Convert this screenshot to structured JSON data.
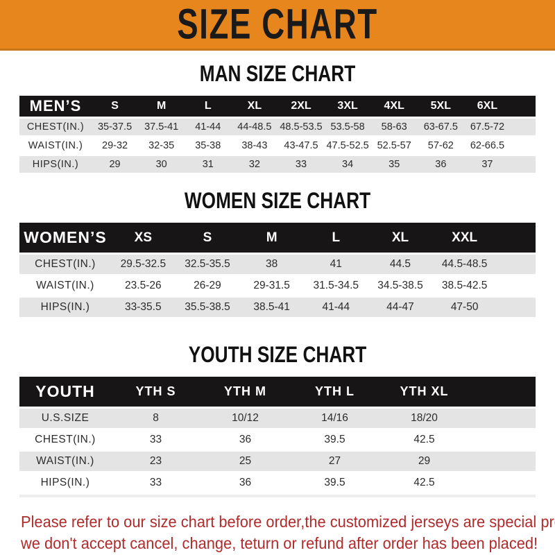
{
  "banner": {
    "title": "SIZE CHART"
  },
  "sections": [
    {
      "title": "MAN SIZE CHART",
      "table": {
        "label": "MEN’S",
        "columns": [
          "S",
          "M",
          "L",
          "XL",
          "2XL",
          "3XL",
          "4XL",
          "5XL",
          "6XL"
        ],
        "rows": [
          {
            "label": "CHEST(IN.)",
            "values": [
              "35-37.5",
              "37.5-41",
              "41-44",
              "44-48.5",
              "48.5-53.5",
              "53.5-58",
              "58-63",
              "63-67.5",
              "67.5-72"
            ]
          },
          {
            "label": "WAIST(IN.)",
            "values": [
              "29-32",
              "32-35",
              "35-38",
              "38-43",
              "43-47.5",
              "47.5-52.5",
              "52.5-57",
              "57-62",
              "62-66.5"
            ]
          },
          {
            "label": "HIPS(IN.)",
            "values": [
              "29",
              "30",
              "31",
              "32",
              "33",
              "34",
              "35",
              "36",
              "37"
            ]
          }
        ]
      }
    },
    {
      "title": "WOMEN SIZE CHART",
      "table": {
        "label": "WOMEN’S",
        "columns": [
          "XS",
          "S",
          "M",
          "L",
          "XL",
          "XXL"
        ],
        "rows": [
          {
            "label": "CHEST(IN.)",
            "values": [
              "29.5-32.5",
              "32.5-35.5",
              "38",
              "41",
              "44.5",
              "44.5-48.5"
            ]
          },
          {
            "label": "WAIST(IN.)",
            "values": [
              "23.5-26",
              "26-29",
              "29-31.5",
              "31.5-34.5",
              "34.5-38.5",
              "38.5-42.5"
            ]
          },
          {
            "label": "HIPS(IN.)",
            "values": [
              "33-35.5",
              "35.5-38.5",
              "38.5-41",
              "41-44",
              "44-47",
              "47-50"
            ]
          }
        ]
      }
    },
    {
      "title": "YOUTH SIZE CHART",
      "table": {
        "label": "YOUTH",
        "columns": [
          "YTH S",
          "YTH M",
          "YTH L",
          "YTH XL"
        ],
        "rows": [
          {
            "label": "U.S.SIZE",
            "values": [
              "8",
              "10/12",
              "14/16",
              "18/20"
            ]
          },
          {
            "label": "CHEST(IN.)",
            "values": [
              "33",
              "36",
              "39.5",
              "42.5"
            ]
          },
          {
            "label": "WAIST(IN.)",
            "values": [
              "23",
              "25",
              "27",
              "29"
            ]
          },
          {
            "label": "HIPS(IN.)",
            "values": [
              "33",
              "36",
              "39.5",
              "42.5"
            ]
          }
        ]
      }
    }
  ],
  "footer": {
    "line1": "Please refer to our size chart before order,the customized jerseys are special products,",
    "line2": "we don't accept cancel, change, teturn or refund after order has been placed!"
  },
  "colors": {
    "banner_bg": "#E8861E",
    "banner_edge": "#C9761A",
    "banner_text": "#1A1A1A",
    "header_bar_bg": "#171515",
    "header_bar_text": "#FFFFFF",
    "row_gray": "#E4E4E4",
    "row_white": "#FFFFFF",
    "footer_red": "#B02B2B"
  }
}
